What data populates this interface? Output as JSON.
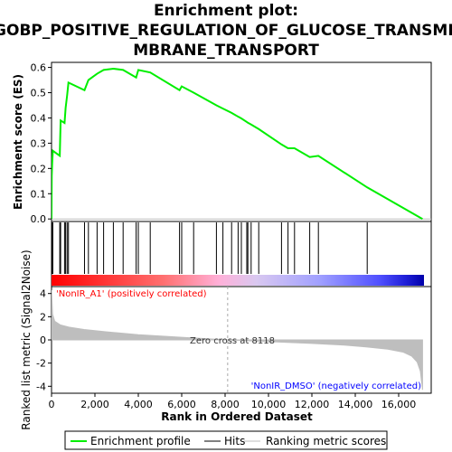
{
  "chart_data": {
    "type": "line",
    "title_line1": "Enrichment plot:",
    "title_line2": "GOBP_POSITIVE_REGULATION_OF_GLUCOSE_TRANSME",
    "title_line3": "MBRANE_TRANSPORT",
    "ylabel_top": "Enrichment score (ES)",
    "ylabel_bottom": "Ranked list metric (Signal2Noise)",
    "xlabel": "Rank in Ordered Dataset",
    "xlim": [
      0,
      17500
    ],
    "es_ylim": [
      -0.01,
      0.62
    ],
    "metric_ylim": [
      -4.6,
      4.6
    ],
    "x_ticks": [
      0,
      2000,
      4000,
      6000,
      8000,
      10000,
      12000,
      14000,
      16000
    ],
    "x_tick_labels": [
      "0",
      "2,000",
      "4,000",
      "6,000",
      "8,000",
      "10,000",
      "12,000",
      "14,000",
      "16,000"
    ],
    "es_ticks": [
      0.0,
      0.1,
      0.2,
      0.3,
      0.4,
      0.5,
      0.6
    ],
    "es_tick_labels": [
      "0.0",
      "0.1",
      "0.2",
      "0.3",
      "0.4",
      "0.5",
      "0.6"
    ],
    "metric_ticks": [
      4,
      2,
      0,
      -2,
      -4
    ],
    "metric_tick_labels": [
      "4",
      "2",
      "0",
      "-2",
      "-4"
    ],
    "hits": [
      10,
      30,
      60,
      380,
      420,
      600,
      650,
      720,
      780,
      1520,
      1700,
      2100,
      2400,
      2850,
      3300,
      3900,
      4000,
      4550,
      5900,
      6000,
      6550,
      7600,
      7900,
      8300,
      8600,
      8750,
      9000,
      9050,
      9200,
      9550,
      10600,
      10900,
      11200,
      11900,
      12300,
      14550
    ],
    "es_profile": {
      "x": [
        0,
        10,
        30,
        60,
        380,
        420,
        600,
        650,
        720,
        780,
        1520,
        1700,
        2100,
        2400,
        2850,
        3300,
        3900,
        4000,
        4550,
        5900,
        6000,
        6550,
        7600,
        7900,
        8300,
        8600,
        8750,
        9000,
        9050,
        9200,
        9550,
        10600,
        10900,
        11200,
        11900,
        12300,
        14550,
        17100
      ],
      "y": [
        0.0,
        0.17,
        0.22,
        0.27,
        0.25,
        0.39,
        0.38,
        0.44,
        0.49,
        0.54,
        0.51,
        0.55,
        0.575,
        0.59,
        0.595,
        0.59,
        0.56,
        0.59,
        0.58,
        0.51,
        0.525,
        0.5,
        0.45,
        0.437,
        0.42,
        0.405,
        0.398,
        0.384,
        0.381,
        0.374,
        0.356,
        0.295,
        0.28,
        0.28,
        0.245,
        0.25,
        0.125,
        0.0
      ]
    },
    "metric_curve": {
      "x": [
        0,
        50,
        150,
        400,
        800,
        1500,
        2500,
        4000,
        6000,
        8118,
        10000,
        12000,
        13500,
        14500,
        15500,
        16200,
        16600,
        16850,
        17000,
        17100
      ],
      "y": [
        4.3,
        2.2,
        1.6,
        1.3,
        1.1,
        0.9,
        0.7,
        0.45,
        0.22,
        0.0,
        -0.15,
        -0.3,
        -0.45,
        -0.6,
        -0.8,
        -1.05,
        -1.4,
        -1.9,
        -2.7,
        -4.3
      ]
    },
    "zero_cross": 8118,
    "zero_cross_label": "Zero cross at 8118",
    "pos_label": "'NonIR_A1' (positively correlated)",
    "neg_label": "'NonIR_DMSO' (negatively correlated)",
    "legend": [
      "Enrichment profile",
      "Hits",
      "Ranking metric scores"
    ],
    "colors": {
      "es_line": "#00ee00",
      "hit_line": "#000000",
      "metric_fill": "#bebebe",
      "pos_text": "#ff0000",
      "neg_text": "#0000ff",
      "zero_line": "#aaaaaa"
    },
    "color_bar_stops": [
      {
        "pos": 0.0,
        "color": "#ff0000"
      },
      {
        "pos": 0.3,
        "color": "#ff7070"
      },
      {
        "pos": 0.45,
        "color": "#ffb0d8"
      },
      {
        "pos": 0.55,
        "color": "#d9c8f0"
      },
      {
        "pos": 0.72,
        "color": "#a0a0ff"
      },
      {
        "pos": 0.88,
        "color": "#5050ff"
      },
      {
        "pos": 0.95,
        "color": "#2020d8"
      },
      {
        "pos": 1.0,
        "color": "#0000aa"
      }
    ]
  }
}
